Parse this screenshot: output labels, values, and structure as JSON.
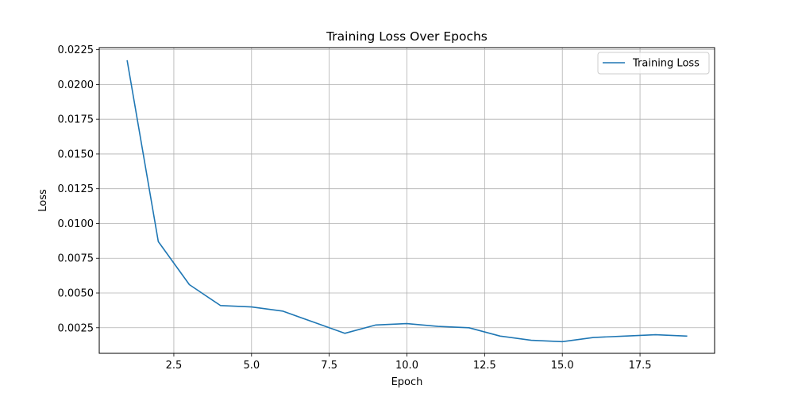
{
  "chart_data": {
    "type": "line",
    "title": "Training Loss Over Epochs",
    "xlabel": "Epoch",
    "ylabel": "Loss",
    "xlim": [
      0.1,
      19.9
    ],
    "ylim": [
      0.00066,
      0.02265
    ],
    "x_ticks": [
      2.5,
      5.0,
      7.5,
      10.0,
      12.5,
      15.0,
      17.5
    ],
    "x_tick_labels": [
      "2.5",
      "5.0",
      "7.5",
      "10.0",
      "12.5",
      "15.0",
      "17.5"
    ],
    "y_ticks": [
      0.0025,
      0.005,
      0.0075,
      0.01,
      0.0125,
      0.015,
      0.0175,
      0.02,
      0.0225
    ],
    "y_tick_labels": [
      "0.0025",
      "0.0050",
      "0.0075",
      "0.0100",
      "0.0125",
      "0.0150",
      "0.0175",
      "0.0200",
      "0.0225"
    ],
    "grid": true,
    "legend_position": "top-right",
    "series": [
      {
        "name": "Training Loss",
        "color": "#1f77b4",
        "x": [
          1,
          2,
          3,
          4,
          5,
          6,
          7,
          8,
          9,
          10,
          11,
          12,
          13,
          14,
          15,
          16,
          17,
          18,
          19
        ],
        "y": [
          0.0217,
          0.0087,
          0.0056,
          0.0041,
          0.004,
          0.0037,
          0.0029,
          0.0021,
          0.0027,
          0.0028,
          0.0026,
          0.0025,
          0.0019,
          0.0016,
          0.0015,
          0.0018,
          0.0019,
          0.002,
          0.0019
        ]
      }
    ]
  }
}
